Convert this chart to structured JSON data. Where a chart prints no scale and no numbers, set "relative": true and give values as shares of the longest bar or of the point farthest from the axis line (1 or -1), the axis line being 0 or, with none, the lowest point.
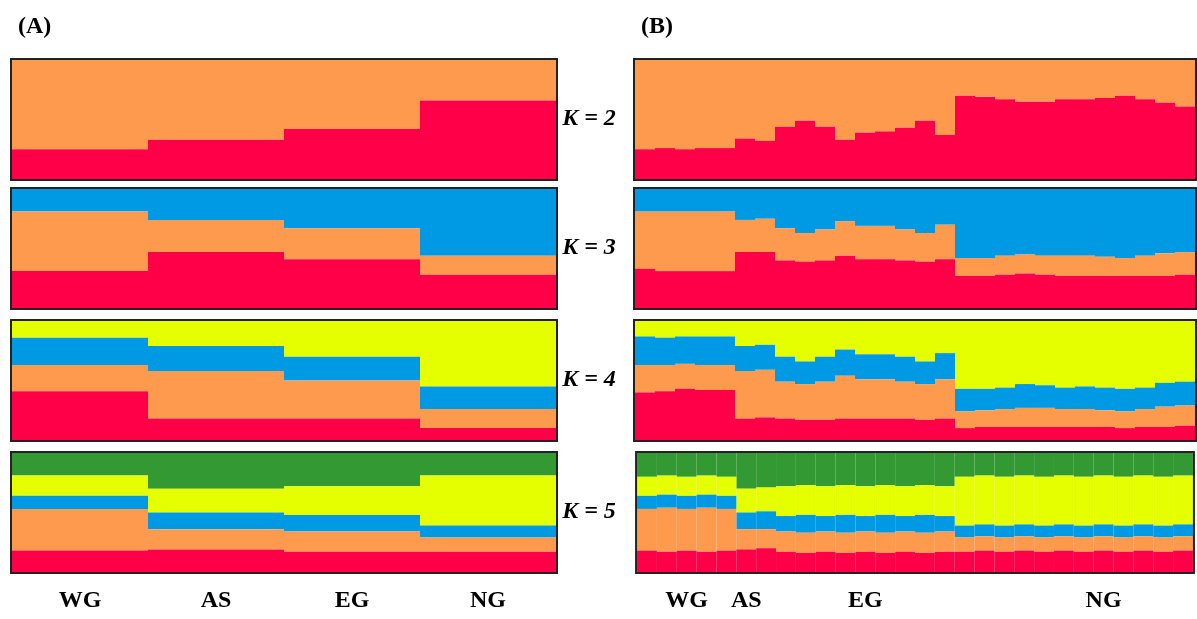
{
  "chart_data": [
    {
      "type": "bar",
      "stacked": true,
      "relative": true,
      "title": "(A)",
      "categories": [
        null,
        null,
        null,
        null
      ],
      "series": [
        {
          "color": "#ff0048",
          "values": [
            0.25,
            0.33,
            0.42,
            0.66
          ]
        },
        {
          "color": "#fd9a4e",
          "values": [
            0.75,
            0.67,
            0.58,
            0.34
          ]
        }
      ]
    },
    {
      "type": "bar",
      "stacked": true,
      "relative": true,
      "title": "(B)",
      "ylabel": "K = 2",
      "categories": [
        null,
        null,
        null,
        null,
        null,
        null,
        null,
        null,
        null,
        null,
        null,
        null,
        null,
        null,
        null,
        null,
        null,
        null,
        null,
        null,
        null,
        null,
        null,
        null,
        null,
        null,
        null,
        null
      ],
      "series": [
        {
          "color": "#ff0048",
          "values": [
            0.25,
            0.26,
            0.25,
            0.26,
            0.26,
            0.34,
            0.32,
            0.44,
            0.49,
            0.44,
            0.33,
            0.39,
            0.4,
            0.43,
            0.49,
            0.37,
            0.7,
            0.69,
            0.67,
            0.65,
            0.65,
            0.67,
            0.67,
            0.68,
            0.7,
            0.67,
            0.64,
            0.61
          ]
        },
        {
          "color": "#fd9a4e",
          "values": [
            0.75,
            0.74,
            0.75,
            0.74,
            0.74,
            0.66,
            0.68,
            0.56,
            0.51,
            0.56,
            0.67,
            0.61,
            0.6,
            0.57,
            0.51,
            0.63,
            0.3,
            0.31,
            0.33,
            0.35,
            0.35,
            0.33,
            0.33,
            0.32,
            0.3,
            0.33,
            0.36,
            0.39
          ]
        }
      ]
    },
    {
      "type": "bar",
      "stacked": true,
      "relative": true,
      "categories": [
        null,
        null,
        null,
        null
      ],
      "series": [
        {
          "color": "#ff0048",
          "values": [
            0.31,
            0.47,
            0.41,
            0.28
          ]
        },
        {
          "color": "#fd9a4e",
          "values": [
            0.5,
            0.27,
            0.26,
            0.16
          ]
        },
        {
          "color": "#0099e3",
          "values": [
            0.19,
            0.26,
            0.33,
            0.56
          ]
        }
      ]
    },
    {
      "type": "bar",
      "stacked": true,
      "relative": true,
      "ylabel": "K = 3",
      "categories": [
        null,
        null,
        null,
        null,
        null,
        null,
        null,
        null,
        null,
        null,
        null,
        null,
        null,
        null,
        null,
        null,
        null,
        null,
        null,
        null,
        null,
        null,
        null,
        null,
        null,
        null,
        null,
        null
      ],
      "series": [
        {
          "color": "#ff0048",
          "values": [
            0.33,
            0.31,
            0.31,
            0.31,
            0.31,
            0.47,
            0.47,
            0.4,
            0.39,
            0.4,
            0.44,
            0.41,
            0.41,
            0.4,
            0.39,
            0.41,
            0.27,
            0.27,
            0.28,
            0.29,
            0.28,
            0.27,
            0.27,
            0.27,
            0.27,
            0.27,
            0.27,
            0.28
          ]
        },
        {
          "color": "#fd9a4e",
          "values": [
            0.48,
            0.5,
            0.5,
            0.5,
            0.5,
            0.27,
            0.28,
            0.27,
            0.24,
            0.26,
            0.29,
            0.28,
            0.28,
            0.26,
            0.24,
            0.29,
            0.15,
            0.15,
            0.16,
            0.16,
            0.16,
            0.17,
            0.17,
            0.16,
            0.15,
            0.17,
            0.19,
            0.19
          ]
        },
        {
          "color": "#0099e3",
          "values": [
            0.19,
            0.19,
            0.19,
            0.19,
            0.19,
            0.26,
            0.25,
            0.33,
            0.37,
            0.34,
            0.27,
            0.31,
            0.31,
            0.34,
            0.37,
            0.3,
            0.58,
            0.58,
            0.56,
            0.55,
            0.56,
            0.56,
            0.56,
            0.57,
            0.58,
            0.56,
            0.54,
            0.53
          ]
        }
      ]
    },
    {
      "type": "bar",
      "stacked": true,
      "relative": true,
      "categories": [
        null,
        null,
        null,
        null
      ],
      "series": [
        {
          "color": "#ff0048",
          "values": [
            0.41,
            0.18,
            0.18,
            0.1
          ]
        },
        {
          "color": "#fd9a4e",
          "values": [
            0.22,
            0.4,
            0.32,
            0.16
          ]
        },
        {
          "color": "#0099e3",
          "values": [
            0.23,
            0.21,
            0.2,
            0.19
          ]
        },
        {
          "color": "#e5ff00",
          "values": [
            0.14,
            0.21,
            0.3,
            0.55
          ]
        }
      ]
    },
    {
      "type": "bar",
      "stacked": true,
      "relative": true,
      "ylabel": "K = 4",
      "categories": [
        null,
        null,
        null,
        null,
        null,
        null,
        null,
        null,
        null,
        null,
        null,
        null,
        null,
        null,
        null,
        null,
        null,
        null,
        null,
        null,
        null,
        null,
        null,
        null,
        null,
        null,
        null,
        null
      ],
      "series": [
        {
          "color": "#ff0048",
          "values": [
            0.4,
            0.41,
            0.43,
            0.42,
            0.42,
            0.18,
            0.19,
            0.18,
            0.17,
            0.17,
            0.18,
            0.18,
            0.18,
            0.18,
            0.17,
            0.18,
            0.1,
            0.11,
            0.11,
            0.11,
            0.11,
            0.11,
            0.11,
            0.11,
            0.1,
            0.11,
            0.11,
            0.12
          ]
        },
        {
          "color": "#fd9a4e",
          "values": [
            0.23,
            0.22,
            0.21,
            0.21,
            0.21,
            0.4,
            0.4,
            0.31,
            0.3,
            0.32,
            0.36,
            0.33,
            0.33,
            0.31,
            0.3,
            0.33,
            0.14,
            0.14,
            0.15,
            0.16,
            0.16,
            0.15,
            0.15,
            0.14,
            0.14,
            0.15,
            0.17,
            0.17
          ]
        },
        {
          "color": "#0099e3",
          "values": [
            0.24,
            0.23,
            0.23,
            0.24,
            0.24,
            0.21,
            0.21,
            0.21,
            0.19,
            0.21,
            0.22,
            0.21,
            0.21,
            0.21,
            0.19,
            0.22,
            0.19,
            0.18,
            0.18,
            0.2,
            0.19,
            0.18,
            0.19,
            0.19,
            0.19,
            0.18,
            0.2,
            0.2
          ]
        },
        {
          "color": "#e5ff00",
          "values": [
            0.13,
            0.14,
            0.13,
            0.13,
            0.13,
            0.21,
            0.2,
            0.3,
            0.34,
            0.3,
            0.24,
            0.28,
            0.28,
            0.3,
            0.34,
            0.27,
            0.57,
            0.57,
            0.56,
            0.53,
            0.54,
            0.56,
            0.55,
            0.56,
            0.57,
            0.56,
            0.52,
            0.51
          ]
        }
      ]
    },
    {
      "type": "bar",
      "stacked": true,
      "relative": true,
      "categories": [
        "WG",
        "AS",
        "EG",
        "NG"
      ],
      "series": [
        {
          "color": "#ff0048",
          "values": [
            0.18,
            0.19,
            0.17,
            0.17
          ]
        },
        {
          "color": "#fd9a4e",
          "values": [
            0.35,
            0.17,
            0.17,
            0.12
          ]
        },
        {
          "color": "#0099e3",
          "values": [
            0.11,
            0.14,
            0.14,
            0.1
          ]
        },
        {
          "color": "#e5ff00",
          "values": [
            0.17,
            0.2,
            0.24,
            0.42
          ]
        },
        {
          "color": "#339933",
          "values": [
            0.19,
            0.3,
            0.28,
            0.19
          ]
        }
      ]
    },
    {
      "type": "bar",
      "stacked": true,
      "relative": true,
      "ylabel": "K = 5",
      "categories": [
        null,
        null,
        "WG",
        null,
        null,
        "AS",
        null,
        null,
        null,
        null,
        null,
        "EG",
        null,
        null,
        null,
        null,
        null,
        null,
        null,
        null,
        null,
        null,
        null,
        "NG",
        null,
        null,
        null,
        null
      ],
      "series": [
        {
          "color": "#ff0048",
          "values": [
            0.18,
            0.17,
            0.18,
            0.17,
            0.18,
            0.19,
            0.2,
            0.17,
            0.16,
            0.17,
            0.16,
            0.17,
            0.16,
            0.17,
            0.16,
            0.17,
            0.17,
            0.18,
            0.17,
            0.18,
            0.17,
            0.18,
            0.17,
            0.18,
            0.17,
            0.18,
            0.17,
            0.18
          ]
        },
        {
          "color": "#fd9a4e",
          "values": [
            0.35,
            0.37,
            0.35,
            0.37,
            0.35,
            0.17,
            0.16,
            0.17,
            0.17,
            0.17,
            0.17,
            0.17,
            0.17,
            0.17,
            0.17,
            0.17,
            0.12,
            0.12,
            0.12,
            0.12,
            0.12,
            0.12,
            0.12,
            0.12,
            0.12,
            0.12,
            0.12,
            0.12
          ]
        },
        {
          "color": "#0099e3",
          "values": [
            0.11,
            0.11,
            0.11,
            0.11,
            0.11,
            0.14,
            0.15,
            0.13,
            0.15,
            0.13,
            0.15,
            0.13,
            0.15,
            0.13,
            0.15,
            0.13,
            0.1,
            0.1,
            0.1,
            0.1,
            0.1,
            0.1,
            0.1,
            0.1,
            0.1,
            0.1,
            0.1,
            0.1
          ]
        },
        {
          "color": "#e5ff00",
          "values": [
            0.16,
            0.16,
            0.16,
            0.16,
            0.16,
            0.2,
            0.2,
            0.25,
            0.25,
            0.25,
            0.25,
            0.25,
            0.25,
            0.25,
            0.25,
            0.25,
            0.41,
            0.41,
            0.41,
            0.41,
            0.41,
            0.41,
            0.41,
            0.41,
            0.41,
            0.41,
            0.41,
            0.41
          ]
        },
        {
          "color": "#339933",
          "values": [
            0.2,
            0.19,
            0.2,
            0.19,
            0.2,
            0.3,
            0.29,
            0.28,
            0.27,
            0.28,
            0.27,
            0.28,
            0.27,
            0.28,
            0.27,
            0.28,
            0.2,
            0.19,
            0.2,
            0.19,
            0.2,
            0.19,
            0.2,
            0.19,
            0.2,
            0.19,
            0.2,
            0.19
          ]
        }
      ]
    }
  ]
}
